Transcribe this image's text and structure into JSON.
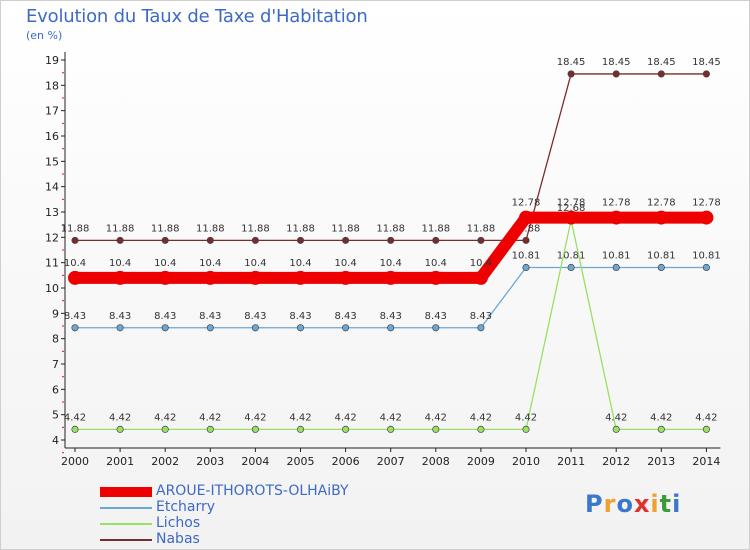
{
  "chart_data": {
    "type": "line",
    "title": "Evolution du Taux de Taxe d'Habitation",
    "subtitle": "(en %)",
    "x": [
      "2000",
      "2001",
      "2002",
      "2003",
      "2004",
      "2005",
      "2006",
      "2007",
      "2008",
      "2009",
      "2010",
      "2011",
      "2012",
      "2013",
      "2014"
    ],
    "ylim": [
      4,
      19
    ],
    "yticks": [
      4,
      5,
      6,
      7,
      8,
      9,
      10,
      11,
      12,
      13,
      14,
      15,
      16,
      17,
      18,
      19
    ],
    "grid": false,
    "legend_position": "bottom-left",
    "series": [
      {
        "name": "AROUE-ITHOROTS-OLHAiBY",
        "color": "#ee0000",
        "values": [
          10.4,
          10.4,
          10.4,
          10.4,
          10.4,
          10.4,
          10.4,
          10.4,
          10.4,
          10.4,
          12.78,
          12.78,
          12.78,
          12.78,
          12.78
        ],
        "labels": [
          "10.4",
          "10.4",
          "10.4",
          "10.4",
          "10.4",
          "10.4",
          "10.4",
          "10.4",
          "10.4",
          "10.4",
          "12.78",
          "12.78",
          "12.78",
          "12.78",
          "12.78"
        ]
      },
      {
        "name": "Etcharry",
        "color": "#6ca6d4",
        "values": [
          8.43,
          8.43,
          8.43,
          8.43,
          8.43,
          8.43,
          8.43,
          8.43,
          8.43,
          8.43,
          10.81,
          10.81,
          10.81,
          10.81,
          10.81
        ],
        "labels": [
          "8.43",
          "8.43",
          "8.43",
          "8.43",
          "8.43",
          "8.43",
          "8.43",
          "8.43",
          "8.43",
          "8.43",
          "10.81",
          "10.81",
          "10.81",
          "10.81",
          "10.81"
        ]
      },
      {
        "name": "Lichos",
        "color": "#99e065",
        "values": [
          4.42,
          4.42,
          4.42,
          4.42,
          4.42,
          4.42,
          4.42,
          4.42,
          4.42,
          4.42,
          4.42,
          12.68,
          4.42,
          4.42,
          4.42
        ],
        "labels": [
          "4.42",
          "4.42",
          "4.42",
          "4.42",
          "4.42",
          "4.42",
          "4.42",
          "4.42",
          "4.42",
          "4.42",
          "4.42",
          "12.68",
          "4.42",
          "4.42",
          "4.42"
        ]
      },
      {
        "name": "Nabas",
        "color": "#7b2b2b",
        "values": [
          11.88,
          11.88,
          11.88,
          11.88,
          11.88,
          11.88,
          11.88,
          11.88,
          11.88,
          11.88,
          11.88,
          18.45,
          18.45,
          18.45,
          18.45
        ],
        "labels": [
          "11.88",
          "11.88",
          "11.88",
          "11.88",
          "11.88",
          "11.88",
          "11.88",
          "11.88",
          "11.88",
          "11.88",
          "11.88",
          "18.45",
          "18.45",
          "18.45",
          "18.45"
        ]
      }
    ]
  },
  "logo": {
    "text": "Proxiti"
  }
}
